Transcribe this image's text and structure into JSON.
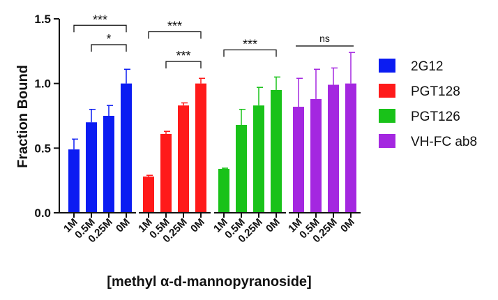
{
  "chart_data": {
    "type": "bar",
    "ylabel": "Fraction Bound",
    "xlabel": "[methyl α-d-mannopyranoside]",
    "ylim": [
      0,
      1.5
    ],
    "yticks": [
      "0.0",
      "0.5",
      "1.0",
      "1.5"
    ],
    "categories": [
      "1M",
      "0.5M",
      "0.25M",
      "0M"
    ],
    "grid": false,
    "legend_position": "right",
    "series": [
      {
        "name": "2G12",
        "color": "#0b1cf2",
        "values": [
          0.49,
          0.7,
          0.75,
          1.0
        ],
        "errors": [
          0.08,
          0.1,
          0.08,
          0.11
        ]
      },
      {
        "name": "PGT128",
        "color": "#ff1a1a",
        "values": [
          0.28,
          0.61,
          0.83,
          1.0
        ],
        "errors": [
          0.01,
          0.02,
          0.02,
          0.04
        ]
      },
      {
        "name": "PGT126",
        "color": "#19c219",
        "values": [
          0.34,
          0.68,
          0.83,
          0.95
        ],
        "errors": [
          0.005,
          0.12,
          0.14,
          0.1
        ]
      },
      {
        "name": "VH-FC ab8",
        "color": "#a427e0",
        "values": [
          0.82,
          0.88,
          0.99,
          1.0
        ],
        "errors": [
          0.22,
          0.23,
          0.13,
          0.24
        ]
      }
    ],
    "annotations": [
      {
        "group": 0,
        "from": 0,
        "to": 3,
        "y": 1.45,
        "label": "***",
        "bracket": true
      },
      {
        "group": 0,
        "from": 1,
        "to": 3,
        "y": 1.3,
        "label": "*",
        "bracket": true
      },
      {
        "group": 1,
        "from": 0,
        "to": 3,
        "y": 1.4,
        "label": "***",
        "bracket": true
      },
      {
        "group": 1,
        "from": 1,
        "to": 3,
        "y": 1.17,
        "label": "***",
        "bracket": true
      },
      {
        "group": 2,
        "from": 0,
        "to": 3,
        "y": 1.26,
        "label": "***",
        "bracket": true
      },
      {
        "group": 3,
        "from": 0,
        "to": 3,
        "y": 1.29,
        "label": "ns",
        "bracket": false
      }
    ]
  }
}
